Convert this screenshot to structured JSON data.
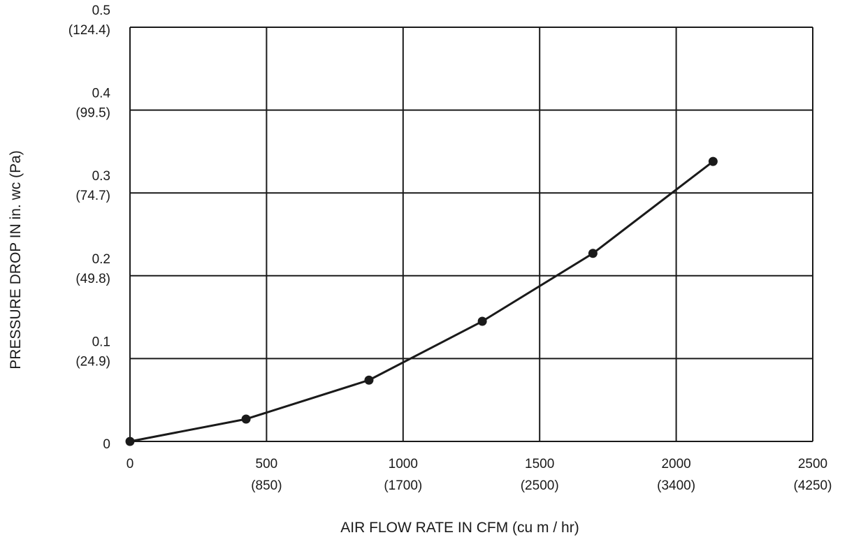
{
  "chart_data": {
    "type": "line",
    "xlabel": "AIR FLOW RATE IN CFM (cu m / hr)",
    "ylabel": "PRESSURE DROP IN in. wc  (Pa)",
    "xlim": [
      0,
      2500
    ],
    "ylim": [
      0,
      0.5
    ],
    "x_ticks": [
      {
        "value": 0,
        "label": "0",
        "sublabel": ""
      },
      {
        "value": 500,
        "label": "500",
        "sublabel": "(850)"
      },
      {
        "value": 1000,
        "label": "1000",
        "sublabel": "(1700)"
      },
      {
        "value": 1500,
        "label": "1500",
        "sublabel": "(2500)"
      },
      {
        "value": 2000,
        "label": "2000",
        "sublabel": "(3400)"
      },
      {
        "value": 2500,
        "label": "2500",
        "sublabel": "(4250)"
      }
    ],
    "y_ticks": [
      {
        "value": 0,
        "label": "0",
        "sublabel": ""
      },
      {
        "value": 0.1,
        "label": "0.1",
        "sublabel": "(24.9)"
      },
      {
        "value": 0.2,
        "label": "0.2",
        "sublabel": "(49.8)"
      },
      {
        "value": 0.3,
        "label": "0.3",
        "sublabel": "(74.7)"
      },
      {
        "value": 0.4,
        "label": "0.4",
        "sublabel": "(99.5)"
      },
      {
        "value": 0.5,
        "label": "0.5",
        "sublabel": "(124.4)"
      }
    ],
    "grid": true,
    "series": [
      {
        "x": [
          0,
          425,
          875,
          1290,
          1695,
          2135
        ],
        "y": [
          0.0,
          0.027,
          0.074,
          0.145,
          0.227,
          0.338
        ]
      }
    ],
    "colors": {
      "line": "#1a1a1a",
      "grid": "#1a1a1a",
      "marker": "#1a1a1a"
    }
  }
}
